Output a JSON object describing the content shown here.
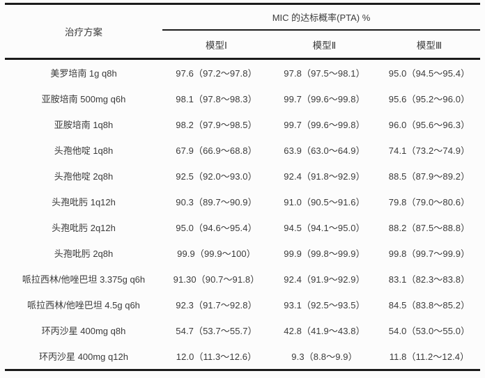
{
  "table": {
    "col1_header": "治疗方案",
    "group_header": "MIC 的达标概率(PTA) %",
    "model_headers": [
      "模型Ⅰ",
      "模型Ⅱ",
      "模型Ⅲ"
    ],
    "rows": [
      {
        "treatment": "美罗培南 1g q8h",
        "model1": "97.6（97.2～97.8）",
        "model2": "97.8（97.5～98.1）",
        "model3": "95.0（94.5～95.4）"
      },
      {
        "treatment": "亚胺培南 500mg q6h",
        "model1": "98.1（97.8～98.3）",
        "model2": "99.7（99.6～99.8）",
        "model3": "95.6（95.2～96.0）"
      },
      {
        "treatment": "亚胺培南 1q8h",
        "model1": "98.2（97.9～98.5）",
        "model2": "99.7（99.6～99.8）",
        "model3": "96.0（95.6～96.3）"
      },
      {
        "treatment": "头孢他啶 1q8h",
        "model1": "67.9（66.9～68.8）",
        "model2": "63.9（63.0～64.9）",
        "model3": "74.1（73.2～74.9）"
      },
      {
        "treatment": "头孢他啶 2q8h",
        "model1": "92.5（92.0～93.0）",
        "model2": "92.4（91.8～92.9）",
        "model3": "88.5（87.9～89.2）"
      },
      {
        "treatment": "头孢吡肟 1q12h",
        "model1": "90.3（89.7～90.9）",
        "model2": "91.0（90.5～91.6）",
        "model3": "79.8（79.0～80.6）"
      },
      {
        "treatment": "头孢吡肟 2q12h",
        "model1": "95.0（94.6～95.4）",
        "model2": "94.5（94.1～95.0）",
        "model3": "88.2（87.5～88.8）"
      },
      {
        "treatment": "头孢吡肟 2q8h",
        "model1": "99.9（99.9～100）",
        "model2": "99.9（99.8～99.9）",
        "model3": "99.8（99.7～99.9）"
      },
      {
        "treatment": "哌拉西林/他唑巴坦 3.375g q6h",
        "model1": "91.30（90.7～91.8）",
        "model2": "92.4（91.9～92.9）",
        "model3": "83.1（82.3～83.8）"
      },
      {
        "treatment": "哌拉西林/他唑巴坦 4.5g q6h",
        "model1": "92.3（91.7～92.8）",
        "model2": "93.1（92.5～93.5）",
        "model3": "84.5（83.8～85.2）"
      },
      {
        "treatment": "环丙沙星 400mg q8h",
        "model1": "54.7（53.7～55.7）",
        "model2": "42.8（41.9～43.8）",
        "model3": "54.0（53.0～55.0）"
      },
      {
        "treatment": "环丙沙星 400mg q12h",
        "model1": "12.0（11.3～12.6）",
        "model2": "9.3（8.8～9.9）",
        "model3": "11.8（11.2～12.4）"
      }
    ]
  },
  "chart_data": {
    "type": "table",
    "title": "MIC 的达标概率(PTA) %",
    "columns": [
      "治疗方案",
      "模型Ⅰ",
      "模型Ⅱ",
      "模型Ⅲ"
    ],
    "pta_values": {
      "model1": [
        97.6,
        98.1,
        98.2,
        67.9,
        92.5,
        90.3,
        95.0,
        99.9,
        91.3,
        92.3,
        54.7,
        12.0
      ],
      "model2": [
        97.8,
        99.7,
        99.7,
        63.9,
        92.4,
        91.0,
        94.5,
        99.9,
        92.4,
        93.1,
        42.8,
        9.3
      ],
      "model3": [
        95.0,
        95.6,
        96.0,
        74.1,
        88.5,
        79.8,
        88.2,
        99.8,
        83.1,
        84.5,
        54.0,
        11.8
      ]
    }
  }
}
